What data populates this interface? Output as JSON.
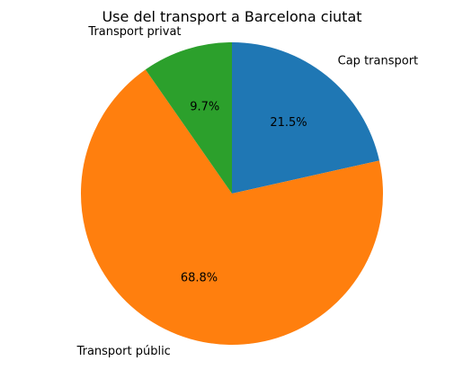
{
  "chart_data": {
    "type": "pie",
    "title": "Use del transport a Barcelona ciutat",
    "categories": [
      "Cap transport",
      "Transport públic",
      "Transport privat"
    ],
    "values": [
      21.5,
      68.8,
      9.7
    ],
    "percent_labels": [
      "21.5%",
      "68.8%",
      "9.7%"
    ],
    "colors": [
      "#1f77b4",
      "#ff7f0e",
      "#2ca02c"
    ],
    "start_angle": 90,
    "direction": "clockwise",
    "legend": "none"
  }
}
